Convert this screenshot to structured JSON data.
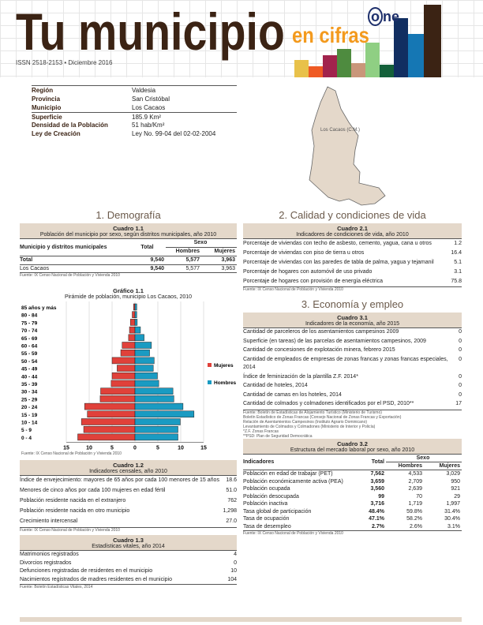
{
  "header": {
    "title": "Tu municipio",
    "subtitle": "en cifras",
    "issn": "ISSN 2518-2153  •  Diciembre 2016",
    "logo": "one",
    "bar_colors": [
      "#e8c14a",
      "#ef5a24",
      "#a1234d",
      "#4e8b3f",
      "#c9967a",
      "#8fcf83",
      "#14603a",
      "#112e61",
      "#1577b4",
      "#3b2314"
    ]
  },
  "info": [
    {
      "k": "Región",
      "v": "Valdesia"
    },
    {
      "k": "Provincia",
      "v": "San Cristóbal"
    },
    {
      "k": "Municipio",
      "v": "Los Cacaos"
    },
    {
      "k": "Superficie",
      "v": "185.9 Km²"
    },
    {
      "k": "Densidad de la Población",
      "v": "51 hab/Km²"
    },
    {
      "k": "Ley de Creación",
      "v": "Ley No. 99-04 del 02-02-2004"
    }
  ],
  "map": {
    "label": "Los Cacaos (C.M.)",
    "color": "#e4d8ca"
  },
  "s1": {
    "title": "1. Demografía"
  },
  "c11": {
    "num": "Cuadro 1.1",
    "title": "Población del municipio por sexo, según distritos municipales, año 2010",
    "h": [
      "Municipio y distritos municipales",
      "Total",
      "Sexo",
      "Hombres",
      "Mujeres"
    ],
    "rows": [
      [
        "Total",
        "9,540",
        "5,577",
        "3,963"
      ],
      [
        "Los Cacaos",
        "9,540",
        "5,577",
        "3,963"
      ]
    ],
    "src": "Fuente: IX Censo Nacional de Población y Vivienda 2010"
  },
  "chart_data": {
    "type": "bar",
    "orientation": "horizontal-pyramid",
    "num": "Gráfico 1.1",
    "title": "Pirámide de población, municipio Los Cacaos, 2010",
    "categories": [
      "85 años y más",
      "80 - 84",
      "75 - 79",
      "70 - 74",
      "65 - 69",
      "60 - 64",
      "55 - 59",
      "50 - 54",
      "45 - 49",
      "40 - 44",
      "35 - 39",
      "30 - 34",
      "25 - 29",
      "20 - 24",
      "15 - 19",
      "10 - 14",
      "5 - 9",
      "0 - 4"
    ],
    "series": [
      {
        "name": "Mujeres",
        "color": "#e0413a",
        "values": [
          0.3,
          0.6,
          1.0,
          1.2,
          1.4,
          2.8,
          3.1,
          5.0,
          3.9,
          5.0,
          5.2,
          7.5,
          7.6,
          11.0,
          10.4,
          11.7,
          11.2,
          12.5
        ]
      },
      {
        "name": "Hombres",
        "color": "#1a9bc2",
        "values": [
          0.4,
          0.4,
          0.5,
          1.2,
          2.0,
          3.6,
          3.2,
          4.2,
          4.0,
          4.9,
          5.2,
          8.3,
          8.5,
          10.5,
          12.9,
          9.9,
          9.4,
          9.4
        ]
      }
    ],
    "xticks": [
      "15",
      "10",
      "5",
      "0",
      "5",
      "10",
      "15"
    ],
    "xlim": [
      -15,
      15
    ],
    "legend": "right",
    "src": "Fuente: IX Censo Nacional de Población y Vivienda 2010"
  },
  "c12": {
    "num": "Cuadro 1.2",
    "title": "Indicadores censales, año 2010",
    "rows": [
      [
        "Índice de envejecimiento: mayores de 65 años por cada 100 menores de 15 años",
        "18.6"
      ],
      [
        "Menores de cinco años por cada 100 mujeres en edad fértil",
        "51.0"
      ],
      [
        "Población residente nacida en el extranjero",
        "762"
      ],
      [
        "Población residente nacida en otro municipio",
        "1,298"
      ],
      [
        "Crecimiento intercensal",
        "27.0"
      ]
    ],
    "src": "Fuente: IX Censo Nacional de Población y Vivienda 2010"
  },
  "c13": {
    "num": "Cuadro 1.3",
    "title": "Estadísticas vitales, año 2014",
    "rows": [
      [
        "Matrimonios registrados",
        "4"
      ],
      [
        "Divorcios registrados",
        "0"
      ],
      [
        "Defunciones registradas de residentes en el municipio",
        "10"
      ],
      [
        "Nacimientos registrados de madres residentes en el municipio",
        "104"
      ]
    ],
    "src": "Fuente: Boletín Estadísticas Vitales, 2014"
  },
  "s2": {
    "title": "2. Calidad y condiciones de vida"
  },
  "c21": {
    "num": "Cuadro 2.1",
    "title": "Indicadores de condiciones de vida, año 2010",
    "rows": [
      [
        "Porcentaje de viviendas con techo de asbesto, cemento, yagua, cana u otros",
        "1.2"
      ],
      [
        "Porcentaje de viviendas con piso de tierra u otros",
        "16.4"
      ],
      [
        "Porcentaje de viviendas con las paredes de tabla de palma, yagua y tejamanil",
        "5.1"
      ],
      [
        "Porcentaje de hogares con automóvil de uso privado",
        "3.1"
      ],
      [
        "Porcentaje de hogares con provisión de energía eléctrica",
        "75.8"
      ]
    ],
    "src": "Fuente: IX Censo Nacional de Población y Vivienda 2010"
  },
  "s3": {
    "title": "3. Economía y empleo"
  },
  "c31": {
    "num": "Cuadro 3.1",
    "title": "Indicadores de la economía, año 2015",
    "rows": [
      [
        "Cantidad de parceleros de los asentamientos campesinos 2009",
        "0"
      ],
      [
        "Superficie (en tareas) de las parcelas de asentamientos campesinos, 2009",
        "0"
      ],
      [
        "Cantidad de concesiones de explotación minera, febrero 2015",
        "0"
      ],
      [
        "Cantidad de empleados de empresas de zonas francas y zonas francas especiales, 2014",
        "0"
      ],
      [
        "Índice de feminización de la plantilla Z.F. 2014*",
        "0"
      ],
      [
        "Cantidad de hoteles, 2014",
        "0"
      ],
      [
        "Cantidad de camas en los hoteles, 2014",
        "0"
      ],
      [
        "Cantidad de colmados y colmadones identificados por el PSD, 2010**",
        "17"
      ]
    ],
    "src": [
      "Fuente: Boletín de Estadísticas de Alojamiento Turístico (Ministerio de Turismo)",
      "Boletín Estadístico de Zonas Francas (Consejo Nacional de Zonas Francas y Exportación)",
      "Relación de Asentamientos Campesinos (Instituto Agrario Dominicano)",
      "Levantamiento de Colmados y Colmadones (Ministerio de Interior y Policía)",
      "*Z.F. Zonas Francas",
      "**PSD: Plan de Seguridad Democrática"
    ]
  },
  "c32": {
    "num": "Cuadro 3.2",
    "title": "Estructura del mercado laboral por sexo, año 2010",
    "h": [
      "Indicadores",
      "Total",
      "Sexo",
      "Hombres",
      "Mujeres"
    ],
    "rows": [
      [
        "Población en edad de trabajar (PET)",
        "7,562",
        "4,533",
        "3,029"
      ],
      [
        "Población económicamente activa (PEA)",
        "3,659",
        "2,709",
        "950"
      ],
      [
        "Población ocupada",
        "3,560",
        "2,639",
        "921"
      ],
      [
        "Población desocupada",
        "99",
        "70",
        "29"
      ],
      [
        "Población inactiva",
        "3,716",
        "1,719",
        "1,997"
      ],
      [
        "Tasa global de participación",
        "48.4%",
        "59.8%",
        "31.4%"
      ],
      [
        "Tasa de ocupación",
        "47.1%",
        "58.2%",
        "30.4%"
      ],
      [
        "Tasa de desempleo",
        "2.7%",
        "2.6%",
        "3.1%"
      ]
    ],
    "src": "Fuente: IX Censo Nacional de Población y Vivienda 2010"
  }
}
